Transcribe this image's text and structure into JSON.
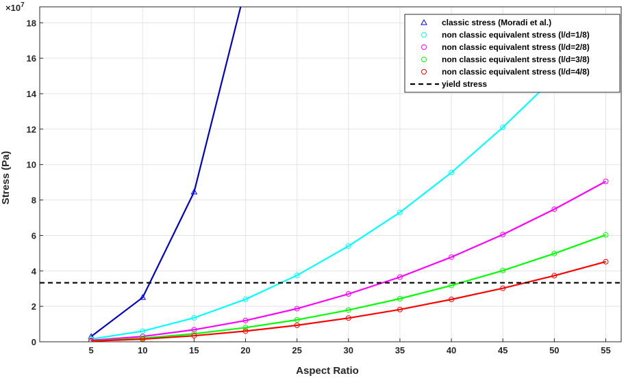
{
  "chart_data": {
    "type": "line",
    "title": "",
    "xlabel": "Aspect Ratio",
    "ylabel": "Stress (Pa)",
    "y_exponent_label": "×10",
    "y_exponent": "7",
    "xlim": [
      0,
      56.5
    ],
    "ylim": [
      0,
      18.9
    ],
    "x_ticks": [
      5,
      10,
      15,
      20,
      25,
      30,
      35,
      40,
      45,
      50,
      55
    ],
    "y_ticks": [
      0,
      2,
      4,
      6,
      8,
      10,
      12,
      14,
      16,
      18
    ],
    "y_scale_note": "values in units of 1e7 Pa",
    "grid": true,
    "legend_position": "top-right",
    "series": [
      {
        "name": "classic stress (Moradi et al.)",
        "color": "#0000ff",
        "line_color": "#0000cc",
        "marker": "triangle",
        "x": [
          5,
          10,
          15,
          20
        ],
        "values": [
          0.3,
          2.5,
          8.45,
          20.0
        ]
      },
      {
        "name": "non classic equivalent stress (l/d=1/8)",
        "color": "#00ffff",
        "marker": "circle",
        "x": [
          5,
          10,
          15,
          20,
          25,
          30,
          35,
          40,
          45,
          50,
          55
        ],
        "values": [
          0.15,
          0.6,
          1.35,
          2.4,
          3.75,
          5.4,
          7.3,
          9.55,
          12.1,
          14.9,
          18.0
        ]
      },
      {
        "name": "non classic equivalent stress (l/d=2/8)",
        "color": "#ff00ff",
        "marker": "circle",
        "x": [
          5,
          10,
          15,
          20,
          25,
          30,
          35,
          40,
          45,
          50,
          55
        ],
        "values": [
          0.08,
          0.3,
          0.68,
          1.2,
          1.87,
          2.7,
          3.65,
          4.78,
          6.05,
          7.48,
          9.05
        ]
      },
      {
        "name": "non classic equivalent stress (l/d=3/8)",
        "color": "#00ff00",
        "marker": "circle",
        "x": [
          5,
          10,
          15,
          20,
          25,
          30,
          35,
          40,
          45,
          50,
          55
        ],
        "values": [
          0.05,
          0.2,
          0.45,
          0.8,
          1.24,
          1.79,
          2.43,
          3.18,
          4.02,
          4.98,
          6.03
        ]
      },
      {
        "name": "non classic equivalent stress (l/d=4/8)",
        "color": "#ff0000",
        "marker": "circle",
        "x": [
          5,
          10,
          15,
          20,
          25,
          30,
          35,
          40,
          45,
          50,
          55
        ],
        "values": [
          0.04,
          0.15,
          0.34,
          0.6,
          0.93,
          1.34,
          1.82,
          2.39,
          3.02,
          3.73,
          4.52
        ]
      },
      {
        "name": "yield stress",
        "color": "#000000",
        "marker": "none",
        "dashed": true,
        "x": [
          0,
          56.5
        ],
        "values": [
          3.33,
          3.33
        ]
      }
    ]
  }
}
